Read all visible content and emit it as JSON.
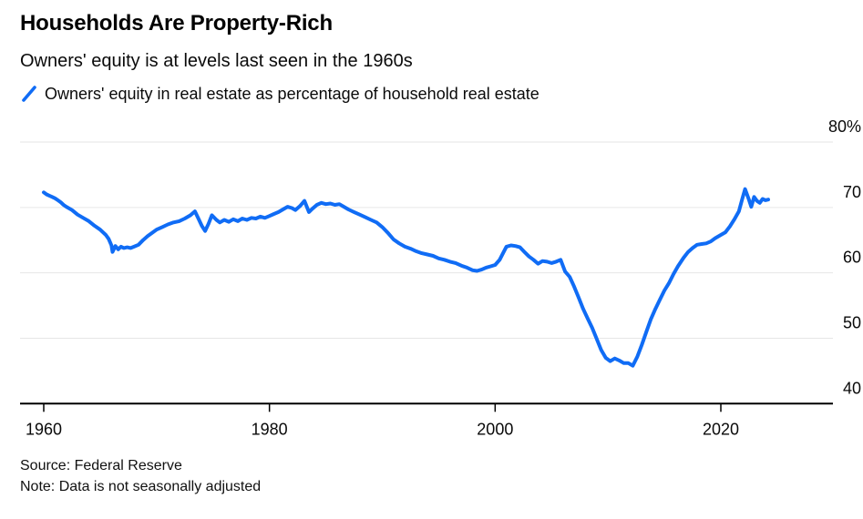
{
  "header": {
    "title": "Households Are Property-Rich",
    "subtitle": "Owners' equity is at levels last seen in the 1960s"
  },
  "legend": {
    "label": "Owners' equity in real estate as percentage of household real estate"
  },
  "footer": {
    "source": "Source: Federal Reserve",
    "note": "Note: Data is not seasonally adjusted"
  },
  "colors": {
    "line": "#106cf5",
    "grid": "#e6e6e6",
    "axis": "#000000",
    "tick_text": "#0a0a0a"
  },
  "chart_data": {
    "type": "line",
    "title": "Households Are Property-Rich",
    "xlabel": "",
    "ylabel": "Owners' equity in real estate as percentage of household real estate",
    "grid": "horizontal",
    "legend_position": "top-left",
    "xlim": [
      1957.9,
      2029.8
    ],
    "ylim": [
      40,
      80
    ],
    "x_ticks": [
      {
        "value": 1960,
        "label": "1960"
      },
      {
        "value": 1980,
        "label": "1980"
      },
      {
        "value": 2000,
        "label": "2000"
      },
      {
        "value": 2020,
        "label": "2020"
      }
    ],
    "y_ticks": [
      {
        "value": 40,
        "label": "40"
      },
      {
        "value": 50,
        "label": "50"
      },
      {
        "value": 60,
        "label": "60"
      },
      {
        "value": 70,
        "label": "70"
      },
      {
        "value": 80,
        "label": "80%"
      }
    ],
    "series": [
      {
        "name": "Owners' equity in real estate as percentage of household real estate",
        "color": "#106cf5",
        "points": [
          [
            1960.0,
            72.3
          ],
          [
            1960.25,
            72.0
          ],
          [
            1960.5,
            71.8
          ],
          [
            1960.75,
            71.6
          ],
          [
            1961.0,
            71.4
          ],
          [
            1961.25,
            71.1
          ],
          [
            1961.5,
            70.8
          ],
          [
            1961.75,
            70.4
          ],
          [
            1962.0,
            70.1
          ],
          [
            1962.5,
            69.6
          ],
          [
            1963.0,
            68.9
          ],
          [
            1963.5,
            68.4
          ],
          [
            1964.0,
            67.9
          ],
          [
            1964.5,
            67.2
          ],
          [
            1965.0,
            66.6
          ],
          [
            1965.5,
            65.8
          ],
          [
            1965.75,
            65.2
          ],
          [
            1966.0,
            64.2
          ],
          [
            1966.1,
            63.2
          ],
          [
            1966.35,
            64.1
          ],
          [
            1966.6,
            63.6
          ],
          [
            1966.85,
            64.0
          ],
          [
            1967.1,
            63.8
          ],
          [
            1967.4,
            63.9
          ],
          [
            1967.7,
            63.8
          ],
          [
            1968.0,
            64.0
          ],
          [
            1968.4,
            64.3
          ],
          [
            1968.8,
            65.0
          ],
          [
            1969.2,
            65.6
          ],
          [
            1969.6,
            66.1
          ],
          [
            1970.0,
            66.6
          ],
          [
            1970.5,
            67.0
          ],
          [
            1971.0,
            67.4
          ],
          [
            1971.5,
            67.7
          ],
          [
            1972.0,
            67.9
          ],
          [
            1972.5,
            68.3
          ],
          [
            1973.0,
            68.8
          ],
          [
            1973.4,
            69.4
          ],
          [
            1973.7,
            68.3
          ],
          [
            1974.0,
            67.2
          ],
          [
            1974.3,
            66.4
          ],
          [
            1974.6,
            67.5
          ],
          [
            1974.9,
            68.8
          ],
          [
            1975.3,
            68.1
          ],
          [
            1975.6,
            67.7
          ],
          [
            1976.0,
            68.1
          ],
          [
            1976.4,
            67.8
          ],
          [
            1976.8,
            68.2
          ],
          [
            1977.2,
            67.9
          ],
          [
            1977.6,
            68.3
          ],
          [
            1978.0,
            68.1
          ],
          [
            1978.4,
            68.4
          ],
          [
            1978.8,
            68.3
          ],
          [
            1979.2,
            68.6
          ],
          [
            1979.6,
            68.4
          ],
          [
            1980.0,
            68.7
          ],
          [
            1980.4,
            69.0
          ],
          [
            1980.8,
            69.3
          ],
          [
            1981.2,
            69.7
          ],
          [
            1981.6,
            70.1
          ],
          [
            1982.0,
            69.9
          ],
          [
            1982.3,
            69.6
          ],
          [
            1982.7,
            70.2
          ],
          [
            1983.1,
            71.0
          ],
          [
            1983.5,
            69.3
          ],
          [
            1983.8,
            69.8
          ],
          [
            1984.2,
            70.4
          ],
          [
            1984.6,
            70.7
          ],
          [
            1985.0,
            70.5
          ],
          [
            1985.4,
            70.6
          ],
          [
            1985.8,
            70.4
          ],
          [
            1986.2,
            70.5
          ],
          [
            1986.6,
            70.1
          ],
          [
            1987.0,
            69.7
          ],
          [
            1987.5,
            69.3
          ],
          [
            1988.0,
            68.9
          ],
          [
            1988.5,
            68.5
          ],
          [
            1989.0,
            68.1
          ],
          [
            1989.5,
            67.7
          ],
          [
            1990.0,
            67.0
          ],
          [
            1990.5,
            66.1
          ],
          [
            1991.0,
            65.1
          ],
          [
            1991.5,
            64.5
          ],
          [
            1992.0,
            64.0
          ],
          [
            1992.5,
            63.7
          ],
          [
            1993.0,
            63.3
          ],
          [
            1993.5,
            63.0
          ],
          [
            1994.0,
            62.8
          ],
          [
            1994.5,
            62.6
          ],
          [
            1995.0,
            62.2
          ],
          [
            1995.5,
            62.0
          ],
          [
            1996.0,
            61.7
          ],
          [
            1996.5,
            61.5
          ],
          [
            1997.0,
            61.1
          ],
          [
            1997.5,
            60.8
          ],
          [
            1998.0,
            60.4
          ],
          [
            1998.4,
            60.3
          ],
          [
            1998.8,
            60.5
          ],
          [
            1999.2,
            60.8
          ],
          [
            1999.6,
            61.0
          ],
          [
            2000.0,
            61.2
          ],
          [
            2000.4,
            62.0
          ],
          [
            2000.7,
            63.0
          ],
          [
            2001.0,
            64.0
          ],
          [
            2001.4,
            64.2
          ],
          [
            2001.8,
            64.1
          ],
          [
            2002.2,
            63.9
          ],
          [
            2002.6,
            63.2
          ],
          [
            2003.0,
            62.5
          ],
          [
            2003.4,
            62.0
          ],
          [
            2003.8,
            61.4
          ],
          [
            2004.2,
            61.8
          ],
          [
            2004.6,
            61.7
          ],
          [
            2005.0,
            61.5
          ],
          [
            2005.4,
            61.7
          ],
          [
            2005.8,
            62.0
          ],
          [
            2006.2,
            60.2
          ],
          [
            2006.6,
            59.4
          ],
          [
            2007.0,
            57.9
          ],
          [
            2007.4,
            56.2
          ],
          [
            2007.8,
            54.5
          ],
          [
            2008.2,
            53.0
          ],
          [
            2008.6,
            51.6
          ],
          [
            2009.0,
            49.9
          ],
          [
            2009.4,
            48.2
          ],
          [
            2009.8,
            47.0
          ],
          [
            2010.2,
            46.5
          ],
          [
            2010.6,
            46.9
          ],
          [
            2011.0,
            46.6
          ],
          [
            2011.4,
            46.2
          ],
          [
            2011.8,
            46.2
          ],
          [
            2012.2,
            45.8
          ],
          [
            2012.6,
            47.2
          ],
          [
            2013.0,
            49.0
          ],
          [
            2013.4,
            51.0
          ],
          [
            2013.8,
            52.9
          ],
          [
            2014.2,
            54.5
          ],
          [
            2014.6,
            55.9
          ],
          [
            2015.0,
            57.3
          ],
          [
            2015.4,
            58.4
          ],
          [
            2015.8,
            59.8
          ],
          [
            2016.2,
            61.0
          ],
          [
            2016.7,
            62.3
          ],
          [
            2017.1,
            63.2
          ],
          [
            2017.5,
            63.8
          ],
          [
            2017.9,
            64.3
          ],
          [
            2018.3,
            64.4
          ],
          [
            2018.7,
            64.5
          ],
          [
            2019.1,
            64.8
          ],
          [
            2019.5,
            65.3
          ],
          [
            2020.0,
            65.8
          ],
          [
            2020.4,
            66.2
          ],
          [
            2020.8,
            67.1
          ],
          [
            2021.2,
            68.2
          ],
          [
            2021.6,
            69.4
          ],
          [
            2021.9,
            71.3
          ],
          [
            2022.15,
            72.8
          ],
          [
            2022.45,
            71.4
          ],
          [
            2022.7,
            70.1
          ],
          [
            2022.95,
            71.6
          ],
          [
            2023.2,
            71.0
          ],
          [
            2023.45,
            70.7
          ],
          [
            2023.7,
            71.3
          ],
          [
            2023.95,
            71.1
          ],
          [
            2024.2,
            71.2
          ]
        ]
      }
    ]
  }
}
